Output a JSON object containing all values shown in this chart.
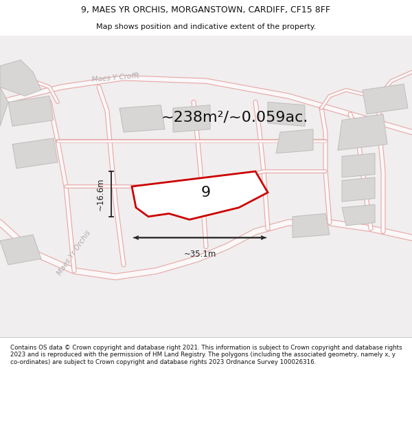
{
  "title_line1": "9, MAES YR ORCHIS, MORGANSTOWN, CARDIFF, CF15 8FF",
  "title_line2": "Map shows position and indicative extent of the property.",
  "area_text": "~238m²/~0.059ac.",
  "width_label": "~35.1m",
  "height_label": "~16.6m",
  "property_number": "9",
  "footer_text": "Contains OS data © Crown copyright and database right 2021. This information is subject to Crown copyright and database rights 2023 and is reproduced with the permission of HM Land Registry. The polygons (including the associated geometry, namely x, y co-ordinates) are subject to Crown copyright and database rights 2023 Ordnance Survey 100026316.",
  "map_bg": "#f0eeee",
  "road_fill": "#faf8f8",
  "road_edge": "#e8a0a0",
  "building_color": "#d8d5d5",
  "building_edge": "#c0bcbc",
  "property_fill": "#ffffff",
  "property_edge": "#cc0000",
  "street_label_color": "#b0aaaa",
  "dim_color": "#222222",
  "title_color": "#111111",
  "footer_color": "#111111",
  "header_footer_bg": "#ffffff"
}
